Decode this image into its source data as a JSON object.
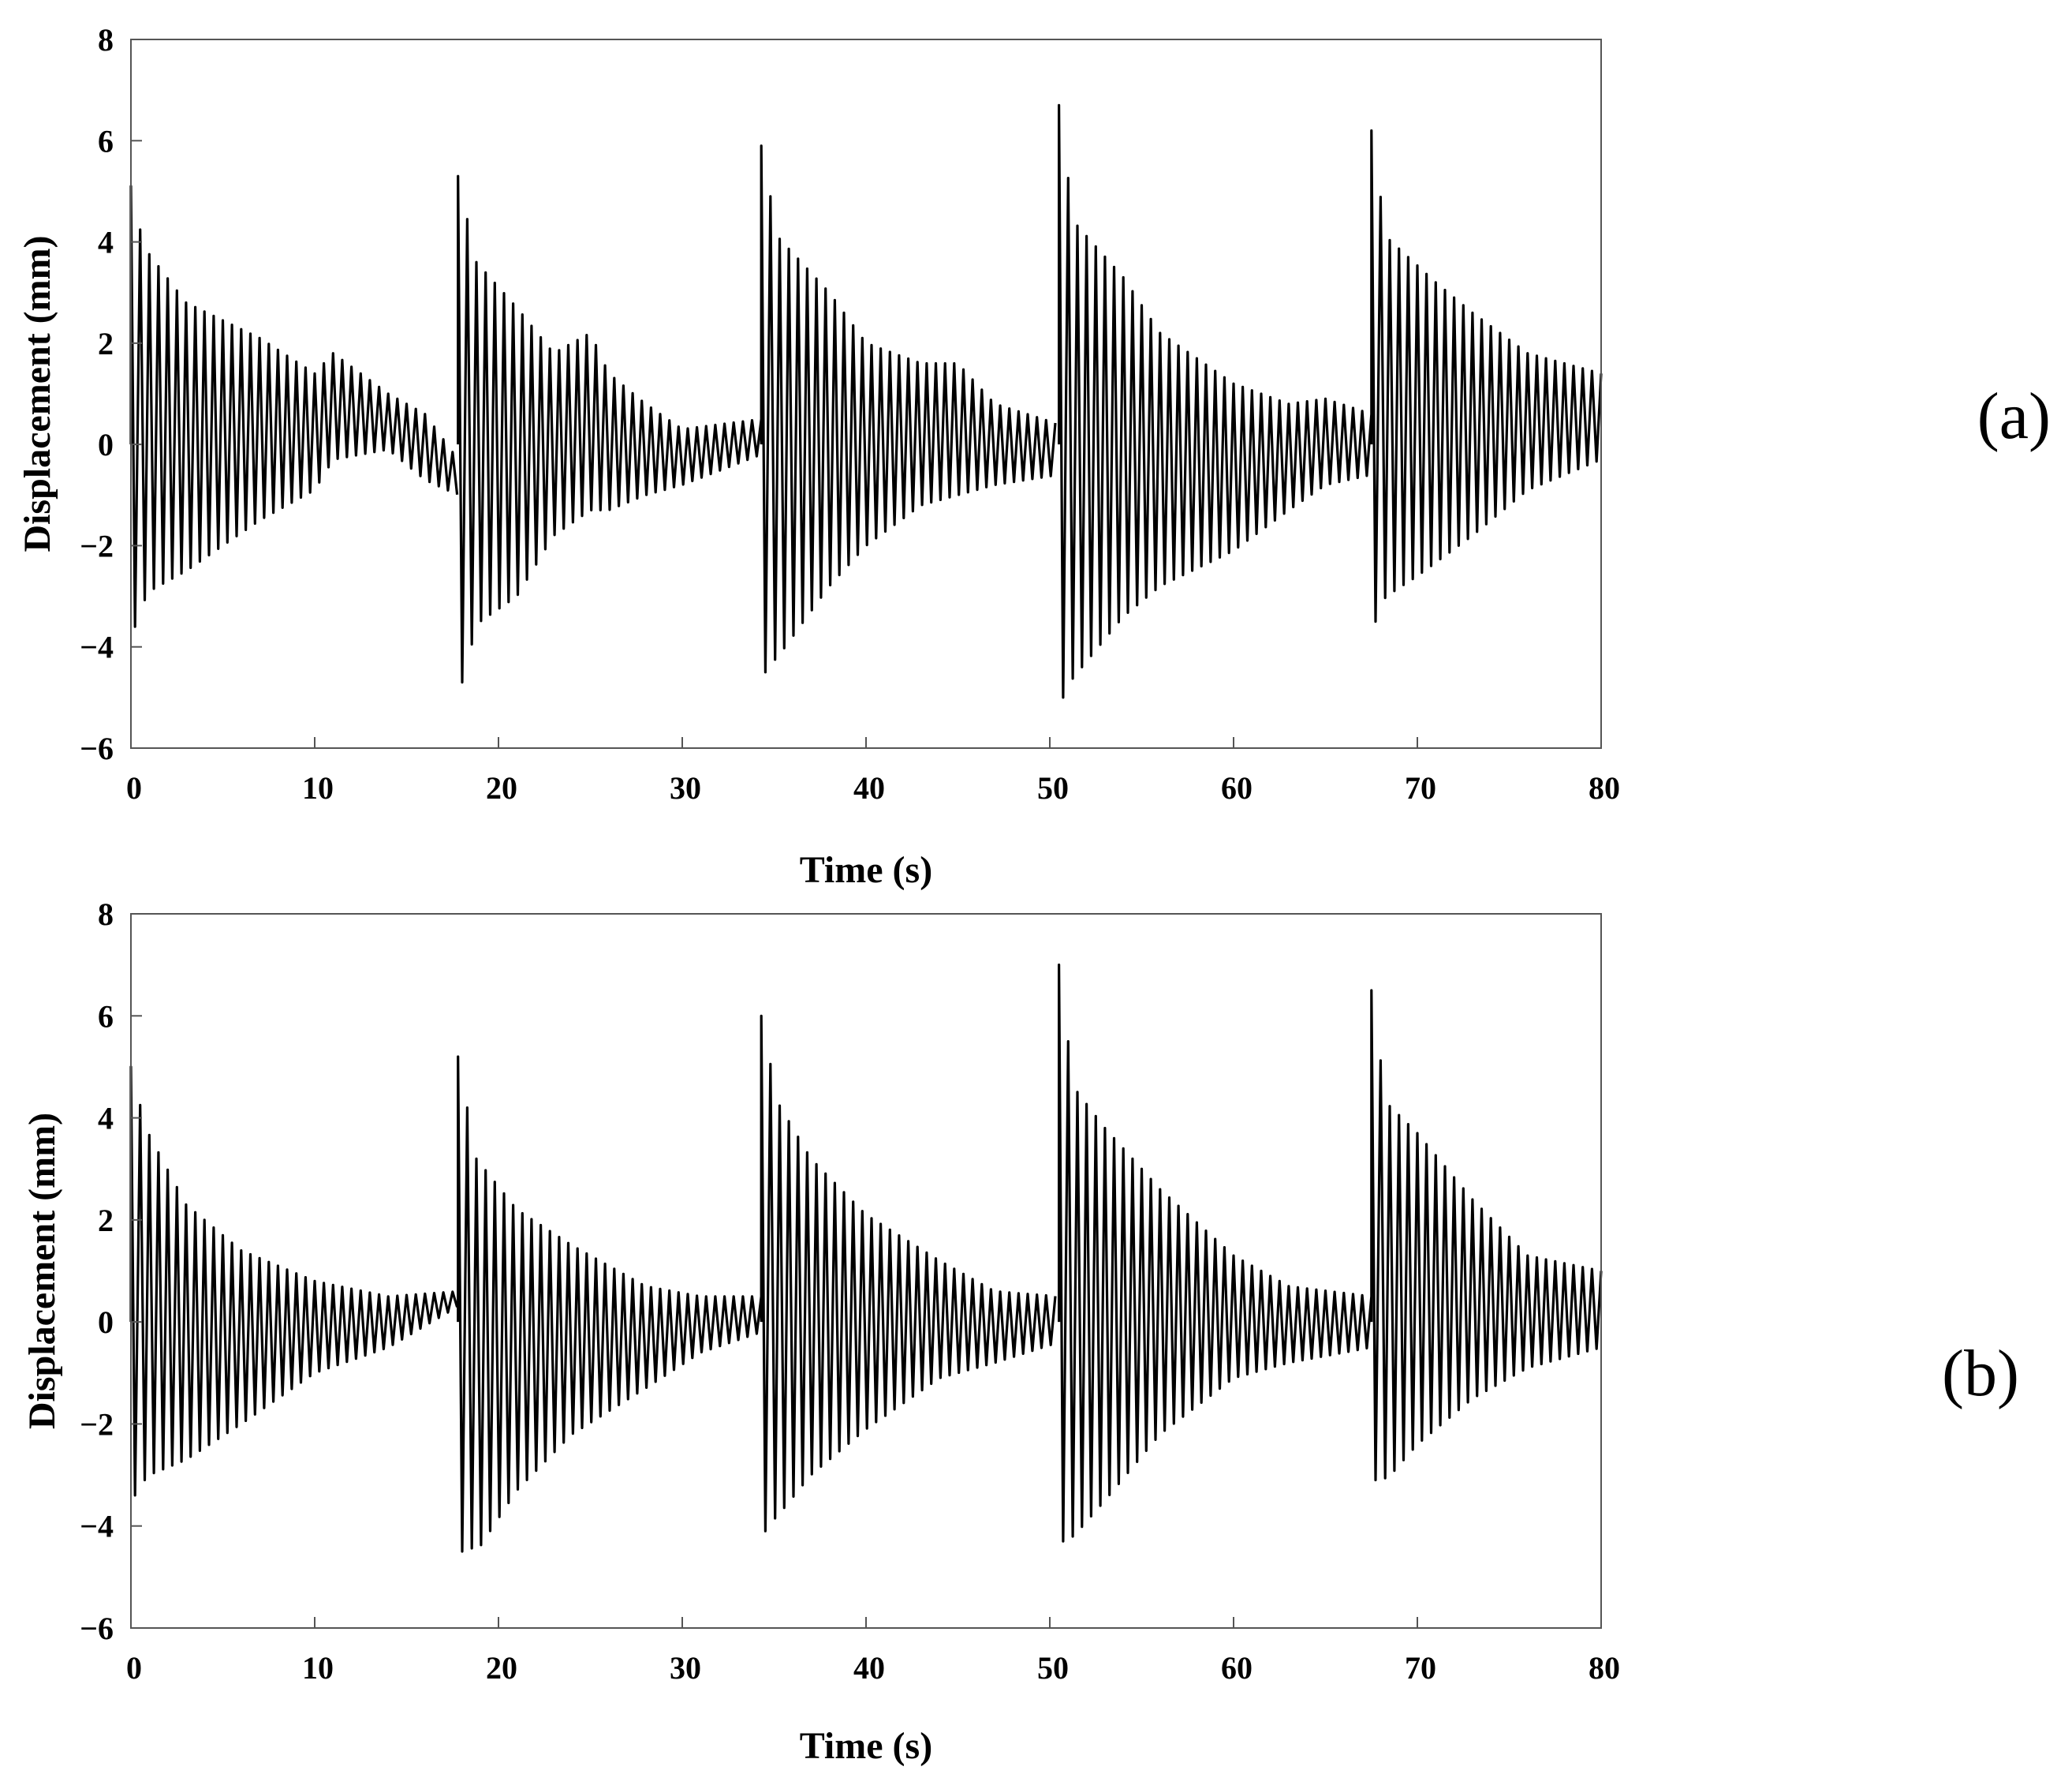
{
  "chart_data": [
    {
      "type": "line",
      "panel_label": "(a)",
      "xlabel": "Time (s)",
      "ylabel": "Displacement (mm)",
      "xlim": [
        0,
        80
      ],
      "ylim": [
        -6,
        8
      ],
      "xticks": [
        "0",
        "10",
        "20",
        "30",
        "40",
        "50",
        "60",
        "70",
        "80"
      ],
      "yticks": [
        "−6",
        "−4",
        "−2",
        "0",
        "2",
        "4",
        "6",
        "8"
      ],
      "grid": false,
      "line_color": "#000000",
      "series": [
        {
          "oscillation_period_s": 0.5,
          "bursts": [
            {
              "start": 0.0,
              "end": 17.8,
              "peak": 5.1,
              "trough": -3.6,
              "upper": [
                [
                  0,
                  5.1
                ],
                [
                  0.7,
                  3.9
                ],
                [
                  3,
                  2.8
                ],
                [
                  7,
                  2.1
                ],
                [
                  10,
                  1.4
                ],
                [
                  11,
                  1.8
                ],
                [
                  14,
                  1.0
                ],
                [
                  16,
                  0.6
                ],
                [
                  17.8,
                  -0.3
                ]
              ],
              "lower": [
                [
                  0,
                  -3.6
                ],
                [
                  1,
                  -2.9
                ],
                [
                  3,
                  -2.5
                ],
                [
                  7,
                  -1.5
                ],
                [
                  10,
                  -0.9
                ],
                [
                  11,
                  -0.3
                ],
                [
                  14,
                  -0.1
                ],
                [
                  16,
                  -0.7
                ],
                [
                  17.8,
                  -1.0
                ]
              ]
            },
            {
              "start": 17.8,
              "end": 34.3,
              "peak": 5.3,
              "trough": -4.7,
              "upper": [
                [
                  17.8,
                  5.3
                ],
                [
                  18.8,
                  3.6
                ],
                [
                  21,
                  2.7
                ],
                [
                  23,
                  1.8
                ],
                [
                  25,
                  2.2
                ],
                [
                  26,
                  1.4
                ],
                [
                  28,
                  0.8
                ],
                [
                  30,
                  0.3
                ],
                [
                  34.3,
                  0.5
                ]
              ],
              "lower": [
                [
                  17.8,
                  -4.7
                ],
                [
                  19,
                  -3.5
                ],
                [
                  21,
                  -3.0
                ],
                [
                  23,
                  -1.8
                ],
                [
                  25,
                  -1.3
                ],
                [
                  26,
                  -1.3
                ],
                [
                  28,
                  -1.0
                ],
                [
                  30,
                  -0.8
                ],
                [
                  34.3,
                  -0.2
                ]
              ]
            },
            {
              "start": 34.3,
              "end": 50.5,
              "peak": 5.9,
              "trough": -4.5,
              "upper": [
                [
                  34.3,
                  5.9
                ],
                [
                  35.2,
                  4.1
                ],
                [
                  38,
                  3.0
                ],
                [
                  40,
                  2.0
                ],
                [
                  43,
                  1.6
                ],
                [
                  45,
                  1.6
                ],
                [
                  47,
                  0.8
                ],
                [
                  50.5,
                  0.4
                ]
              ],
              "lower": [
                [
                  34.3,
                  -4.5
                ],
                [
                  35.2,
                  -4.2
                ],
                [
                  38,
                  -2.8
                ],
                [
                  40,
                  -2.0
                ],
                [
                  43,
                  -1.2
                ],
                [
                  45,
                  -1.0
                ],
                [
                  47,
                  -0.8
                ],
                [
                  50.5,
                  -0.6
                ]
              ]
            },
            {
              "start": 50.5,
              "end": 67.5,
              "peak": 6.7,
              "trough": -5.0,
              "upper": [
                [
                  50.5,
                  6.7
                ],
                [
                  51.3,
                  4.4
                ],
                [
                  54,
                  3.3
                ],
                [
                  56,
                  2.2
                ],
                [
                  60,
                  1.2
                ],
                [
                  63,
                  0.8
                ],
                [
                  65,
                  0.9
                ],
                [
                  67.5,
                  0.6
                ]
              ],
              "lower": [
                [
                  50.5,
                  -5.0
                ],
                [
                  51.3,
                  -4.6
                ],
                [
                  54,
                  -3.4
                ],
                [
                  56,
                  -2.8
                ],
                [
                  60,
                  -2.1
                ],
                [
                  63,
                  -1.3
                ],
                [
                  65,
                  -0.8
                ],
                [
                  67.5,
                  -0.6
                ]
              ]
            },
            {
              "start": 67.5,
              "end": 80.0,
              "peak": 6.2,
              "trough": -3.5,
              "upper": [
                [
                  67.5,
                  6.2
                ],
                [
                  68.3,
                  4.1
                ],
                [
                  71,
                  3.2
                ],
                [
                  73,
                  2.6
                ],
                [
                  76,
                  1.8
                ],
                [
                  80,
                  1.4
                ]
              ],
              "lower": [
                [
                  67.5,
                  -3.5
                ],
                [
                  68.3,
                  -3.0
                ],
                [
                  70,
                  -2.6
                ],
                [
                  73,
                  -1.8
                ],
                [
                  76,
                  -0.9
                ],
                [
                  80,
                  -0.3
                ]
              ]
            }
          ]
        }
      ]
    },
    {
      "type": "line",
      "panel_label": "(b)",
      "xlabel": "Time (s)",
      "ylabel": "Displacement (mm)",
      "xlim": [
        0,
        80
      ],
      "ylim": [
        -6,
        8
      ],
      "xticks": [
        "0",
        "10",
        "20",
        "30",
        "40",
        "50",
        "60",
        "70",
        "80"
      ],
      "yticks": [
        "−6",
        "−4",
        "−2",
        "0",
        "2",
        "4",
        "6",
        "8"
      ],
      "grid": false,
      "line_color": "#000000",
      "series": [
        {
          "oscillation_period_s": 0.5,
          "bursts": [
            {
              "start": 0.0,
              "end": 17.8,
              "peak": 5.0,
              "trough": -3.4,
              "upper": [
                [
                  0,
                  5.0
                ],
                [
                  0.8,
                  3.8
                ],
                [
                  3,
                  2.3
                ],
                [
                  6,
                  1.4
                ],
                [
                  10,
                  0.8
                ],
                [
                  14,
                  0.5
                ],
                [
                  17.8,
                  0.6
                ]
              ],
              "lower": [
                [
                  0,
                  -3.4
                ],
                [
                  1,
                  -3.0
                ],
                [
                  3,
                  -2.7
                ],
                [
                  6,
                  -2.0
                ],
                [
                  10,
                  -1.0
                ],
                [
                  14,
                  -0.5
                ],
                [
                  17.8,
                  0.3
                ]
              ]
            },
            {
              "start": 17.8,
              "end": 34.3,
              "peak": 5.2,
              "trough": -4.5,
              "upper": [
                [
                  17.8,
                  5.2
                ],
                [
                  18.8,
                  3.2
                ],
                [
                  21,
                  2.2
                ],
                [
                  24,
                  1.5
                ],
                [
                  28,
                  0.7
                ],
                [
                  31,
                  0.5
                ],
                [
                  34.3,
                  0.5
                ]
              ],
              "lower": [
                [
                  17.8,
                  -4.5
                ],
                [
                  19,
                  -4.4
                ],
                [
                  21,
                  -3.3
                ],
                [
                  24,
                  -2.2
                ],
                [
                  28,
                  -1.3
                ],
                [
                  31,
                  -0.6
                ],
                [
                  34.3,
                  -0.2
                ]
              ]
            },
            {
              "start": 34.3,
              "end": 50.5,
              "peak": 6.0,
              "trough": -4.1,
              "upper": [
                [
                  34.3,
                  6.0
                ],
                [
                  35.2,
                  4.3
                ],
                [
                  37,
                  3.2
                ],
                [
                  40,
                  2.1
                ],
                [
                  44,
                  1.2
                ],
                [
                  47,
                  0.6
                ],
                [
                  50.5,
                  0.5
                ]
              ],
              "lower": [
                [
                  34.3,
                  -4.1
                ],
                [
                  35.2,
                  -3.8
                ],
                [
                  37,
                  -3.0
                ],
                [
                  40,
                  -2.1
                ],
                [
                  44,
                  -1.1
                ],
                [
                  47,
                  -0.8
                ],
                [
                  50.5,
                  -0.4
                ]
              ]
            },
            {
              "start": 50.5,
              "end": 67.5,
              "peak": 7.0,
              "trough": -4.3,
              "upper": [
                [
                  50.5,
                  7.0
                ],
                [
                  51.3,
                  4.6
                ],
                [
                  53,
                  3.8
                ],
                [
                  56,
                  2.6
                ],
                [
                  60,
                  1.3
                ],
                [
                  63,
                  0.7
                ],
                [
                  67.5,
                  0.5
                ]
              ],
              "lower": [
                [
                  50.5,
                  -4.3
                ],
                [
                  51.3,
                  -4.2
                ],
                [
                  53,
                  -3.5
                ],
                [
                  56,
                  -2.2
                ],
                [
                  60,
                  -1.1
                ],
                [
                  63,
                  -0.8
                ],
                [
                  67.5,
                  -0.5
                ]
              ]
            },
            {
              "start": 67.5,
              "end": 80.0,
              "peak": 6.5,
              "trough": -3.1,
              "upper": [
                [
                  67.5,
                  6.5
                ],
                [
                  68.3,
                  4.3
                ],
                [
                  70,
                  3.7
                ],
                [
                  73,
                  2.4
                ],
                [
                  76,
                  1.3
                ],
                [
                  80,
                  1.0
                ]
              ],
              "lower": [
                [
                  67.5,
                  -2.5
                ],
                [
                  68.3,
                  -3.1
                ],
                [
                  70,
                  -2.4
                ],
                [
                  73,
                  -1.5
                ],
                [
                  76,
                  -0.9
                ],
                [
                  80,
                  -0.5
                ]
              ]
            }
          ]
        }
      ]
    }
  ]
}
